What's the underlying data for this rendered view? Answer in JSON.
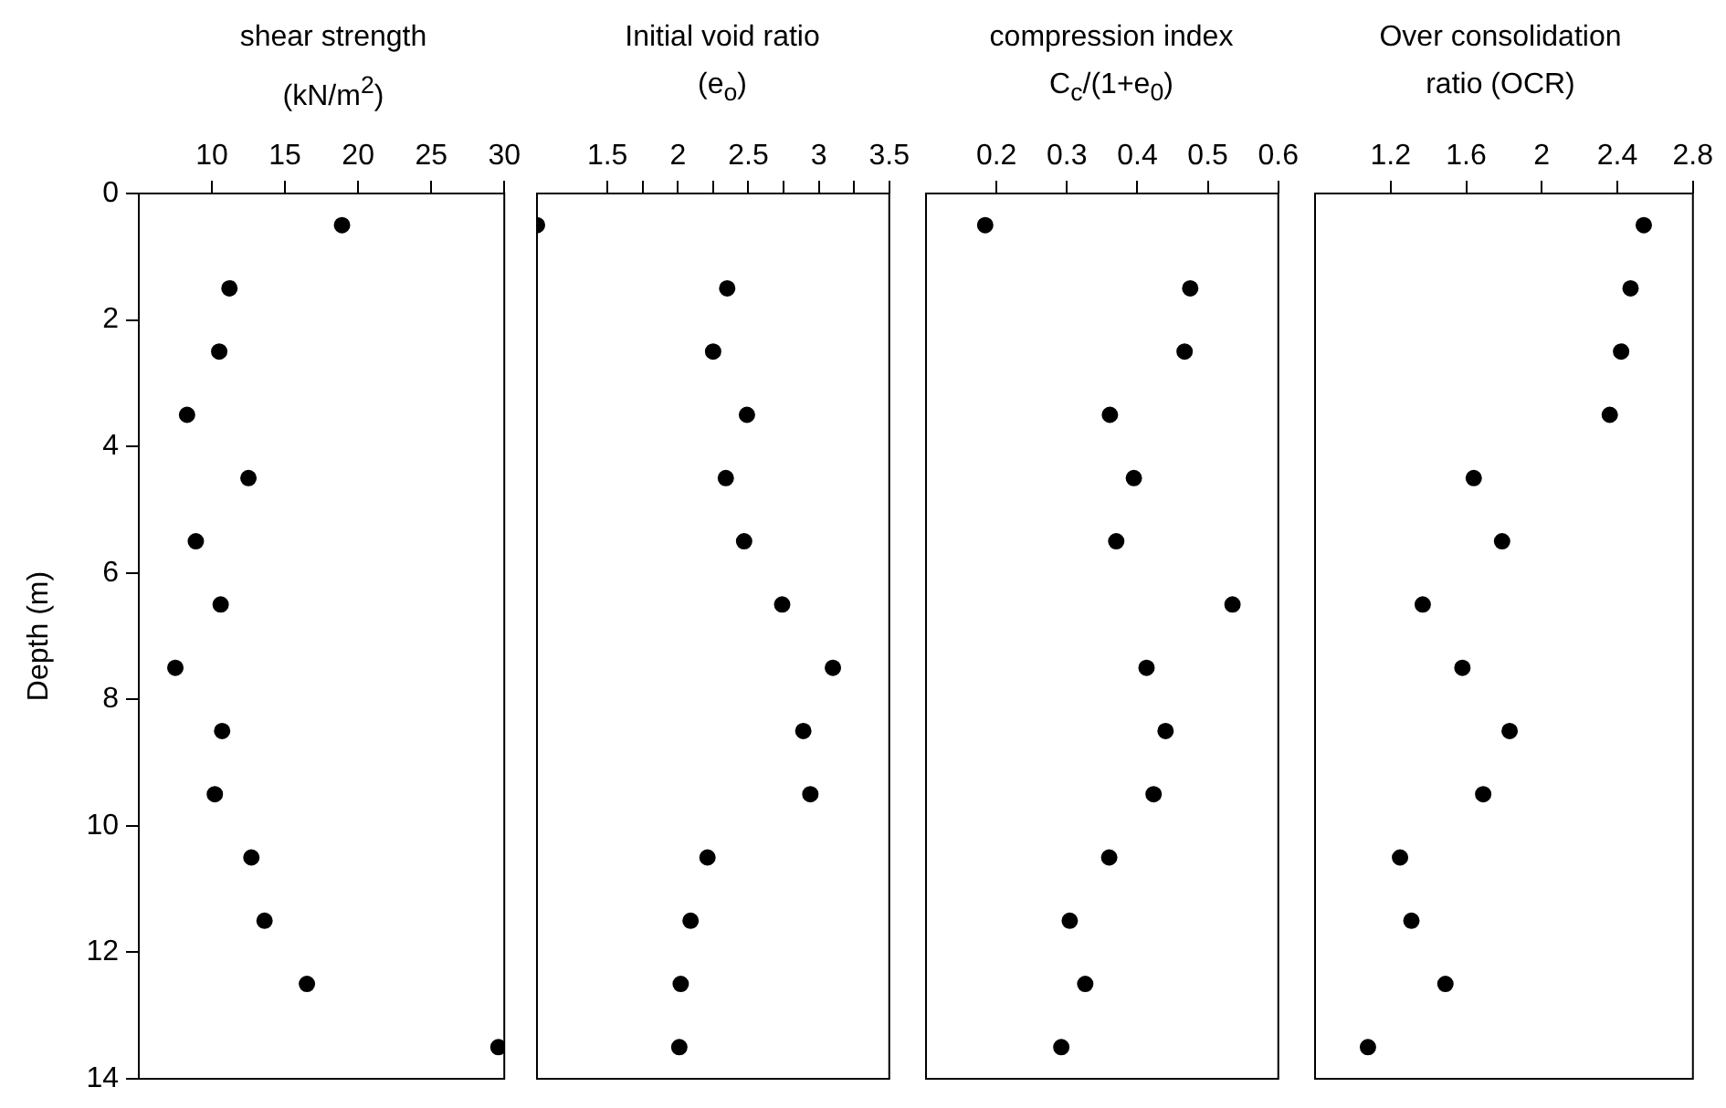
{
  "chart_data": [
    {
      "type": "scatter",
      "xlabel": "shear strength\n(kN/m$^{2}$)",
      "ylabel": "Depth (m)",
      "xlim": [
        5,
        30
      ],
      "xticks": [
        10,
        15,
        20,
        25,
        30
      ],
      "ylim": [
        14,
        0
      ],
      "yticks": [
        0,
        2,
        4,
        6,
        8,
        10,
        12,
        14
      ],
      "marker": "circle",
      "series": [
        {
          "color": "#000000",
          "x": [
            18.9,
            11.2,
            10.5,
            8.3,
            12.5,
            8.9,
            10.6,
            7.5,
            10.7,
            10.2,
            12.7,
            13.6,
            16.5,
            29.6
          ],
          "values": [
            0.5,
            1.5,
            2.5,
            3.5,
            4.5,
            5.5,
            6.5,
            7.5,
            8.5,
            9.5,
            10.5,
            11.5,
            12.5,
            13.5
          ]
        }
      ]
    },
    {
      "type": "scatter",
      "xlabel": "Initial void ratio\n(e$_{o}$)",
      "xlim": [
        1,
        3.5
      ],
      "xticks": [
        1.5,
        {
          "value": 1.75,
          "label": null
        },
        2,
        {
          "value": 2.25,
          "label": null
        },
        2.5,
        {
          "value": 2.75,
          "label": null
        },
        3,
        {
          "value": 3.25,
          "label": null
        },
        3.5
      ],
      "ylim": [
        14,
        0
      ],
      "yticks": [
        0,
        2,
        4,
        6,
        8,
        10,
        12,
        14
      ],
      "tick_labels": "x",
      "marker": "circle",
      "series": [
        {
          "color": "#000000",
          "x": [
            1.0,
            2.35,
            2.25,
            2.49,
            2.34,
            2.47,
            2.74,
            3.1,
            2.89,
            2.94,
            2.21,
            2.09,
            2.02,
            2.01
          ],
          "values": [
            0.5,
            1.5,
            2.5,
            3.5,
            4.5,
            5.5,
            6.5,
            7.5,
            8.5,
            9.5,
            10.5,
            11.5,
            12.5,
            13.5
          ]
        }
      ]
    },
    {
      "type": "scatter",
      "xlabel": "compression index\nC$_{c}$/(1+e$_{0}$)",
      "xlim": [
        0.1,
        0.6
      ],
      "xticks": [
        0.2,
        0.3,
        0.4,
        0.5,
        0.6
      ],
      "ylim": [
        14,
        0
      ],
      "yticks": [
        0,
        2,
        4,
        6,
        8,
        10,
        12,
        14
      ],
      "tick_labels": "x",
      "marker": "circle",
      "series": [
        {
          "color": "#000000",
          "x": [
            0.184,
            0.475,
            0.467,
            0.361,
            0.395,
            0.37,
            0.535,
            0.413,
            0.44,
            0.423,
            0.36,
            0.304,
            0.326,
            0.292
          ],
          "values": [
            0.5,
            1.5,
            2.5,
            3.5,
            4.5,
            5.5,
            6.5,
            7.5,
            8.5,
            9.5,
            10.5,
            11.5,
            12.5,
            13.5
          ]
        }
      ]
    },
    {
      "type": "scatter",
      "xlabel": "Over consolidation\nratio (OCR)",
      "xlim": [
        0.8,
        2.8
      ],
      "xticks": [
        1.2,
        1.6,
        2,
        2.4,
        2.8
      ],
      "ylim": [
        14,
        0
      ],
      "yticks": [
        0,
        2,
        4,
        6,
        8,
        10,
        12,
        14
      ],
      "tick_labels": "x",
      "marker": "circle",
      "series": [
        {
          "color": "#000000",
          "x": [
            2.54,
            2.47,
            2.42,
            2.36,
            1.64,
            1.79,
            1.37,
            1.58,
            1.83,
            1.69,
            1.25,
            1.31,
            1.49,
            1.08
          ],
          "values": [
            0.5,
            1.5,
            2.5,
            3.5,
            4.5,
            5.5,
            6.5,
            7.5,
            8.5,
            9.5,
            10.5,
            11.5,
            12.5,
            13.5
          ]
        }
      ]
    }
  ]
}
